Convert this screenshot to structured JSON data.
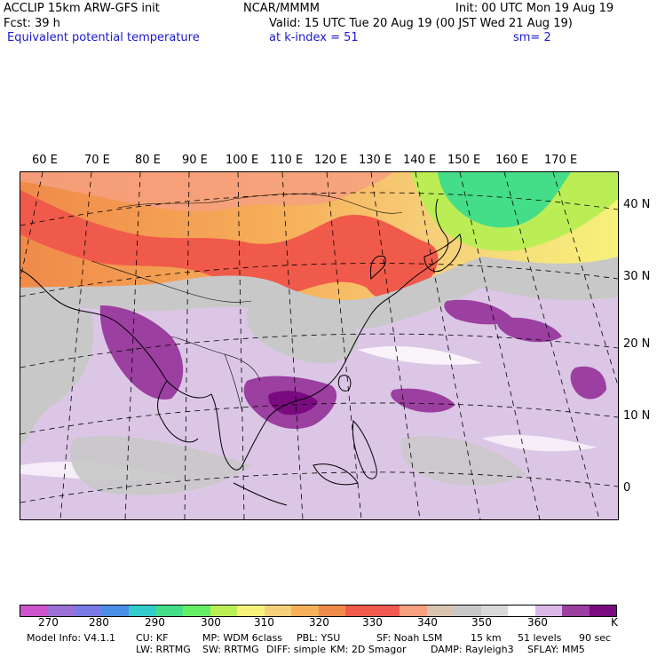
{
  "header": {
    "model": "ACCLIP 15km ARW-GFS init",
    "org": "NCAR/MMMM",
    "init": "Init: 00 UTC Mon 19 Aug 19",
    "fcst": "Fcst:   39 h",
    "valid": "Valid: 15 UTC Tue 20 Aug 19 (00 JST Wed 21 Aug 19)",
    "field": "Equivalent potential temperature",
    "level": "at k-index =  51",
    "sm": "sm= 2"
  },
  "map": {
    "lon_labels": [
      "60 E",
      "70 E",
      "80 E",
      "90 E",
      "100 E",
      "110 E",
      "120 E",
      "130 E",
      "140 E",
      "150 E",
      "160 E",
      "170 E"
    ],
    "lat_labels": [
      "40 N",
      "30 N",
      "20 N",
      "10 N",
      "0"
    ]
  },
  "colorbar": {
    "unit": "K",
    "colors": [
      "#cc55cc",
      "#9b6fd6",
      "#7a7ae6",
      "#4a8ee6",
      "#33cccc",
      "#44dd88",
      "#66ee66",
      "#bbee55",
      "#f6f27a",
      "#f6d07a",
      "#f6b05a",
      "#f08a4a",
      "#f05a4a",
      "#f05a50",
      "#f6a080",
      "#d8c2b0",
      "#c8c8c8",
      "#d9d9d9",
      "#ffffff",
      "#d9b8e6",
      "#9b3fa0",
      "#7a0a80"
    ],
    "ticks": [
      "270",
      "280",
      "290",
      "300",
      "310",
      "320",
      "330",
      "340",
      "350",
      "360"
    ]
  },
  "footer": {
    "line1": [
      "Model Info: V4.1.1",
      "CU: KF",
      "MP: WDM 6class",
      "PBL: YSU",
      "SF: Noah LSM",
      "15 km",
      "51 levels",
      "90 sec"
    ],
    "line2": [
      "LW: RRTMG",
      "SW: RRTMG",
      "DIFF: simple",
      "KM: 2D Smagor",
      "DAMP: Rayleigh3",
      "SFLAY: MM5"
    ]
  }
}
